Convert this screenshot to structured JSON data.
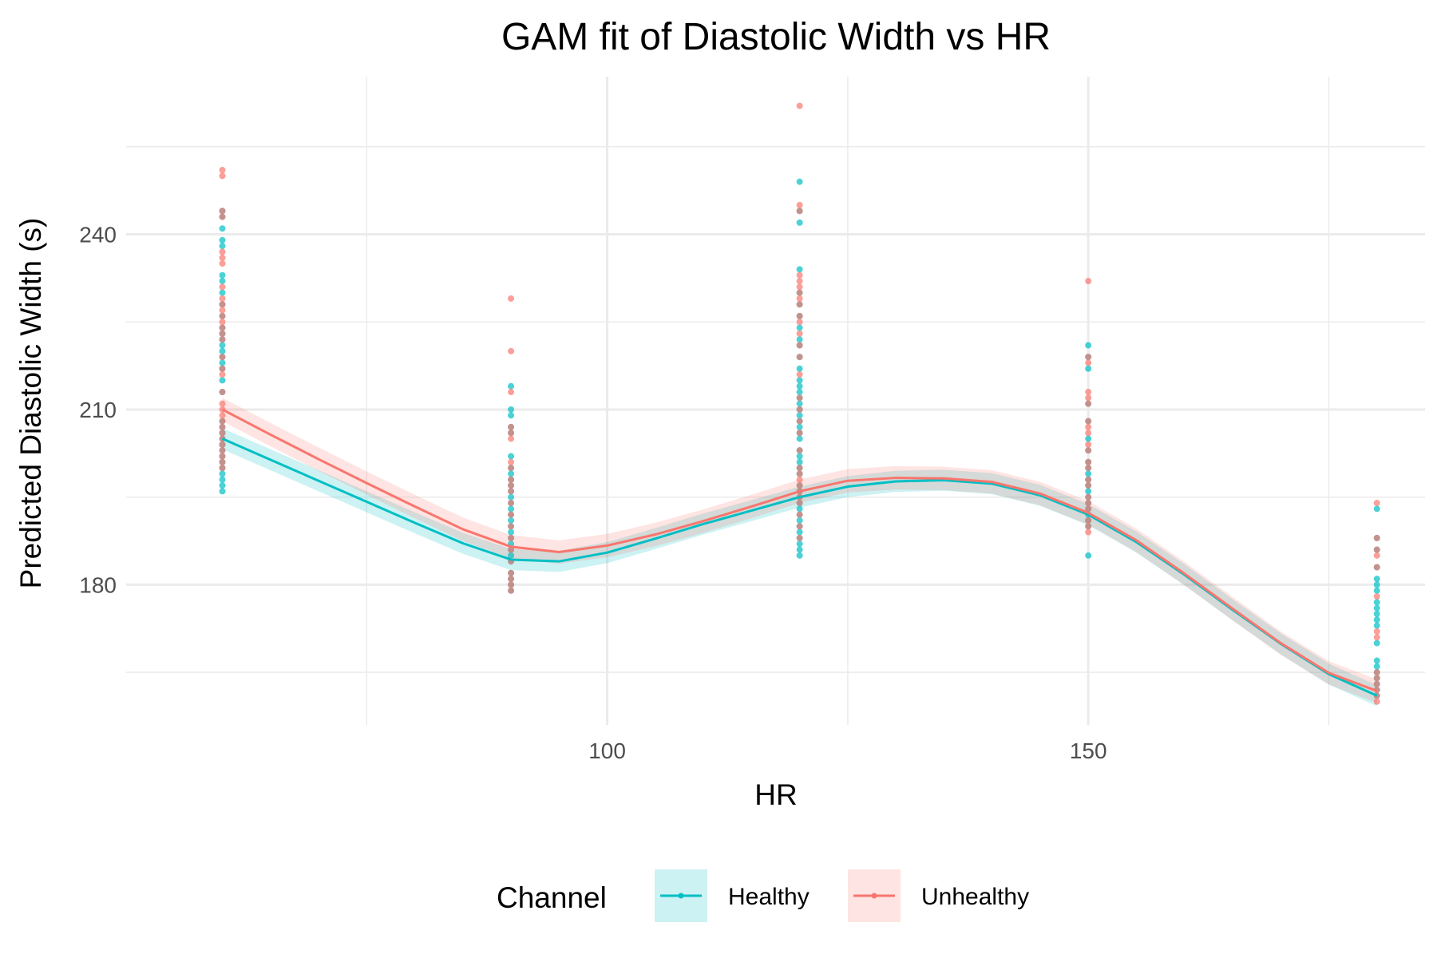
{
  "chart_data": {
    "type": "scatter",
    "title": "GAM fit of Diastolic Width vs HR",
    "xlabel": "HR",
    "ylabel": "Predicted Diastolic Width (s)",
    "xlim": [
      50,
      185
    ],
    "ylim": [
      156,
      267
    ],
    "x_ticks": [
      100,
      150
    ],
    "y_ticks": [
      180,
      210,
      240
    ],
    "x_grid_minor": [
      75,
      125,
      175
    ],
    "y_grid_minor": [
      165,
      195,
      225,
      255
    ],
    "grid": true,
    "legend": {
      "title": "Channel",
      "position": "bottom",
      "entries": [
        {
          "label": "Healthy",
          "color": "#00BFC4"
        },
        {
          "label": "Unhealthy",
          "color": "#F8766D"
        }
      ]
    },
    "series": [
      {
        "name": "Healthy",
        "color": "#00BFC4",
        "points": [
          [
            60,
            196
          ],
          [
            60,
            197
          ],
          [
            60,
            198
          ],
          [
            60,
            199
          ],
          [
            60,
            200
          ],
          [
            60,
            201
          ],
          [
            60,
            202
          ],
          [
            60,
            203
          ],
          [
            60,
            204
          ],
          [
            60,
            205
          ],
          [
            60,
            206
          ],
          [
            60,
            207
          ],
          [
            60,
            208
          ],
          [
            60,
            213
          ],
          [
            60,
            215
          ],
          [
            60,
            217
          ],
          [
            60,
            218
          ],
          [
            60,
            219
          ],
          [
            60,
            220
          ],
          [
            60,
            221
          ],
          [
            60,
            222
          ],
          [
            60,
            223
          ],
          [
            60,
            224
          ],
          [
            60,
            226
          ],
          [
            60,
            228
          ],
          [
            60,
            230
          ],
          [
            60,
            232
          ],
          [
            60,
            233
          ],
          [
            60,
            238
          ],
          [
            60,
            239
          ],
          [
            60,
            241
          ],
          [
            60,
            243
          ],
          [
            60,
            244
          ],
          [
            90,
            179
          ],
          [
            90,
            180
          ],
          [
            90,
            181
          ],
          [
            90,
            182
          ],
          [
            90,
            184
          ],
          [
            90,
            185
          ],
          [
            90,
            186
          ],
          [
            90,
            187
          ],
          [
            90,
            188
          ],
          [
            90,
            189
          ],
          [
            90,
            190
          ],
          [
            90,
            191
          ],
          [
            90,
            192
          ],
          [
            90,
            193
          ],
          [
            90,
            194
          ],
          [
            90,
            195
          ],
          [
            90,
            196
          ],
          [
            90,
            197
          ],
          [
            90,
            198
          ],
          [
            90,
            199
          ],
          [
            90,
            200
          ],
          [
            90,
            202
          ],
          [
            90,
            206
          ],
          [
            90,
            207
          ],
          [
            90,
            209
          ],
          [
            90,
            210
          ],
          [
            90,
            214
          ],
          [
            120,
            185
          ],
          [
            120,
            186
          ],
          [
            120,
            187
          ],
          [
            120,
            188
          ],
          [
            120,
            189
          ],
          [
            120,
            190
          ],
          [
            120,
            191
          ],
          [
            120,
            192
          ],
          [
            120,
            193
          ],
          [
            120,
            194
          ],
          [
            120,
            195
          ],
          [
            120,
            196
          ],
          [
            120,
            197
          ],
          [
            120,
            199
          ],
          [
            120,
            200
          ],
          [
            120,
            201
          ],
          [
            120,
            202
          ],
          [
            120,
            203
          ],
          [
            120,
            205
          ],
          [
            120,
            206
          ],
          [
            120,
            207
          ],
          [
            120,
            208
          ],
          [
            120,
            209
          ],
          [
            120,
            210
          ],
          [
            120,
            211
          ],
          [
            120,
            212
          ],
          [
            120,
            213
          ],
          [
            120,
            214
          ],
          [
            120,
            215
          ],
          [
            120,
            217
          ],
          [
            120,
            219
          ],
          [
            120,
            221
          ],
          [
            120,
            222
          ],
          [
            120,
            224
          ],
          [
            120,
            226
          ],
          [
            120,
            228
          ],
          [
            120,
            230
          ],
          [
            120,
            234
          ],
          [
            120,
            242
          ],
          [
            120,
            244
          ],
          [
            120,
            249
          ],
          [
            150,
            185
          ],
          [
            150,
            190
          ],
          [
            150,
            191
          ],
          [
            150,
            192
          ],
          [
            150,
            193
          ],
          [
            150,
            194
          ],
          [
            150,
            195
          ],
          [
            150,
            196
          ],
          [
            150,
            197
          ],
          [
            150,
            198
          ],
          [
            150,
            199
          ],
          [
            150,
            200
          ],
          [
            150,
            201
          ],
          [
            150,
            203
          ],
          [
            150,
            205
          ],
          [
            150,
            208
          ],
          [
            150,
            211
          ],
          [
            150,
            217
          ],
          [
            150,
            219
          ],
          [
            150,
            221
          ],
          [
            180,
            161
          ],
          [
            180,
            162
          ],
          [
            180,
            163
          ],
          [
            180,
            164
          ],
          [
            180,
            165
          ],
          [
            180,
            166
          ],
          [
            180,
            167
          ],
          [
            180,
            170
          ],
          [
            180,
            173
          ],
          [
            180,
            174
          ],
          [
            180,
            175
          ],
          [
            180,
            176
          ],
          [
            180,
            177
          ],
          [
            180,
            179
          ],
          [
            180,
            180
          ],
          [
            180,
            181
          ],
          [
            180,
            183
          ],
          [
            180,
            186
          ],
          [
            180,
            188
          ],
          [
            180,
            193
          ]
        ],
        "fit_x": [
          60,
          65,
          70,
          75,
          80,
          85,
          90,
          95,
          100,
          105,
          110,
          115,
          120,
          125,
          130,
          135,
          140,
          145,
          150,
          155,
          160,
          165,
          170,
          175,
          180
        ],
        "fit_y": [
          205,
          201.4,
          197.8,
          194.2,
          190.6,
          187.1,
          184.3,
          184.0,
          185.5,
          187.9,
          190.4,
          192.7,
          195.0,
          196.8,
          197.7,
          197.9,
          197.3,
          195.3,
          192.0,
          187.3,
          181.7,
          175.7,
          169.9,
          164.7,
          161.0
        ],
        "band": 1.8
      },
      {
        "name": "Unhealthy",
        "color": "#F8766D",
        "points": [
          [
            60,
            200
          ],
          [
            60,
            201
          ],
          [
            60,
            202
          ],
          [
            60,
            203
          ],
          [
            60,
            204
          ],
          [
            60,
            205
          ],
          [
            60,
            206
          ],
          [
            60,
            207
          ],
          [
            60,
            208
          ],
          [
            60,
            209
          ],
          [
            60,
            210
          ],
          [
            60,
            211
          ],
          [
            60,
            213
          ],
          [
            60,
            216
          ],
          [
            60,
            217
          ],
          [
            60,
            219
          ],
          [
            60,
            222
          ],
          [
            60,
            223
          ],
          [
            60,
            224
          ],
          [
            60,
            225
          ],
          [
            60,
            226
          ],
          [
            60,
            227
          ],
          [
            60,
            228
          ],
          [
            60,
            229
          ],
          [
            60,
            231
          ],
          [
            60,
            235
          ],
          [
            60,
            236
          ],
          [
            60,
            237
          ],
          [
            60,
            243
          ],
          [
            60,
            244
          ],
          [
            60,
            250
          ],
          [
            60,
            251
          ],
          [
            90,
            179
          ],
          [
            90,
            180
          ],
          [
            90,
            181
          ],
          [
            90,
            182
          ],
          [
            90,
            184
          ],
          [
            90,
            186
          ],
          [
            90,
            188
          ],
          [
            90,
            190
          ],
          [
            90,
            192
          ],
          [
            90,
            194
          ],
          [
            90,
            196
          ],
          [
            90,
            197
          ],
          [
            90,
            198
          ],
          [
            90,
            200
          ],
          [
            90,
            201
          ],
          [
            90,
            205
          ],
          [
            90,
            206
          ],
          [
            90,
            207
          ],
          [
            90,
            213
          ],
          [
            90,
            220
          ],
          [
            90,
            229
          ],
          [
            120,
            188
          ],
          [
            120,
            190
          ],
          [
            120,
            192
          ],
          [
            120,
            194
          ],
          [
            120,
            195
          ],
          [
            120,
            196
          ],
          [
            120,
            197
          ],
          [
            120,
            198
          ],
          [
            120,
            199
          ],
          [
            120,
            200
          ],
          [
            120,
            203
          ],
          [
            120,
            206
          ],
          [
            120,
            208
          ],
          [
            120,
            210
          ],
          [
            120,
            212
          ],
          [
            120,
            216
          ],
          [
            120,
            219
          ],
          [
            120,
            221
          ],
          [
            120,
            223
          ],
          [
            120,
            225
          ],
          [
            120,
            226
          ],
          [
            120,
            228
          ],
          [
            120,
            229
          ],
          [
            120,
            230
          ],
          [
            120,
            231
          ],
          [
            120,
            232
          ],
          [
            120,
            233
          ],
          [
            120,
            244
          ],
          [
            120,
            245
          ],
          [
            120,
            262
          ],
          [
            150,
            189
          ],
          [
            150,
            190
          ],
          [
            150,
            191
          ],
          [
            150,
            193
          ],
          [
            150,
            194
          ],
          [
            150,
            195
          ],
          [
            150,
            197
          ],
          [
            150,
            198
          ],
          [
            150,
            200
          ],
          [
            150,
            201
          ],
          [
            150,
            203
          ],
          [
            150,
            204
          ],
          [
            150,
            206
          ],
          [
            150,
            207
          ],
          [
            150,
            208
          ],
          [
            150,
            211
          ],
          [
            150,
            212
          ],
          [
            150,
            213
          ],
          [
            150,
            218
          ],
          [
            150,
            219
          ],
          [
            150,
            232
          ],
          [
            180,
            160
          ],
          [
            180,
            161
          ],
          [
            180,
            162
          ],
          [
            180,
            163
          ],
          [
            180,
            164
          ],
          [
            180,
            165
          ],
          [
            180,
            171
          ],
          [
            180,
            172
          ],
          [
            180,
            178
          ],
          [
            180,
            183
          ],
          [
            180,
            185
          ],
          [
            180,
            186
          ],
          [
            180,
            188
          ],
          [
            180,
            194
          ]
        ],
        "fit_x": [
          60,
          65,
          70,
          75,
          80,
          85,
          90,
          95,
          100,
          105,
          110,
          115,
          120,
          125,
          130,
          135,
          140,
          145,
          150,
          155,
          160,
          165,
          170,
          175,
          180
        ],
        "fit_y": [
          210,
          205.7,
          201.5,
          197.4,
          193.4,
          189.5,
          186.5,
          185.6,
          186.7,
          188.6,
          190.9,
          193.4,
          196.0,
          197.8,
          198.3,
          198.2,
          197.6,
          195.6,
          192.3,
          187.6,
          181.9,
          175.9,
          170.0,
          164.9,
          161.8
        ],
        "band": 2.0
      }
    ]
  }
}
